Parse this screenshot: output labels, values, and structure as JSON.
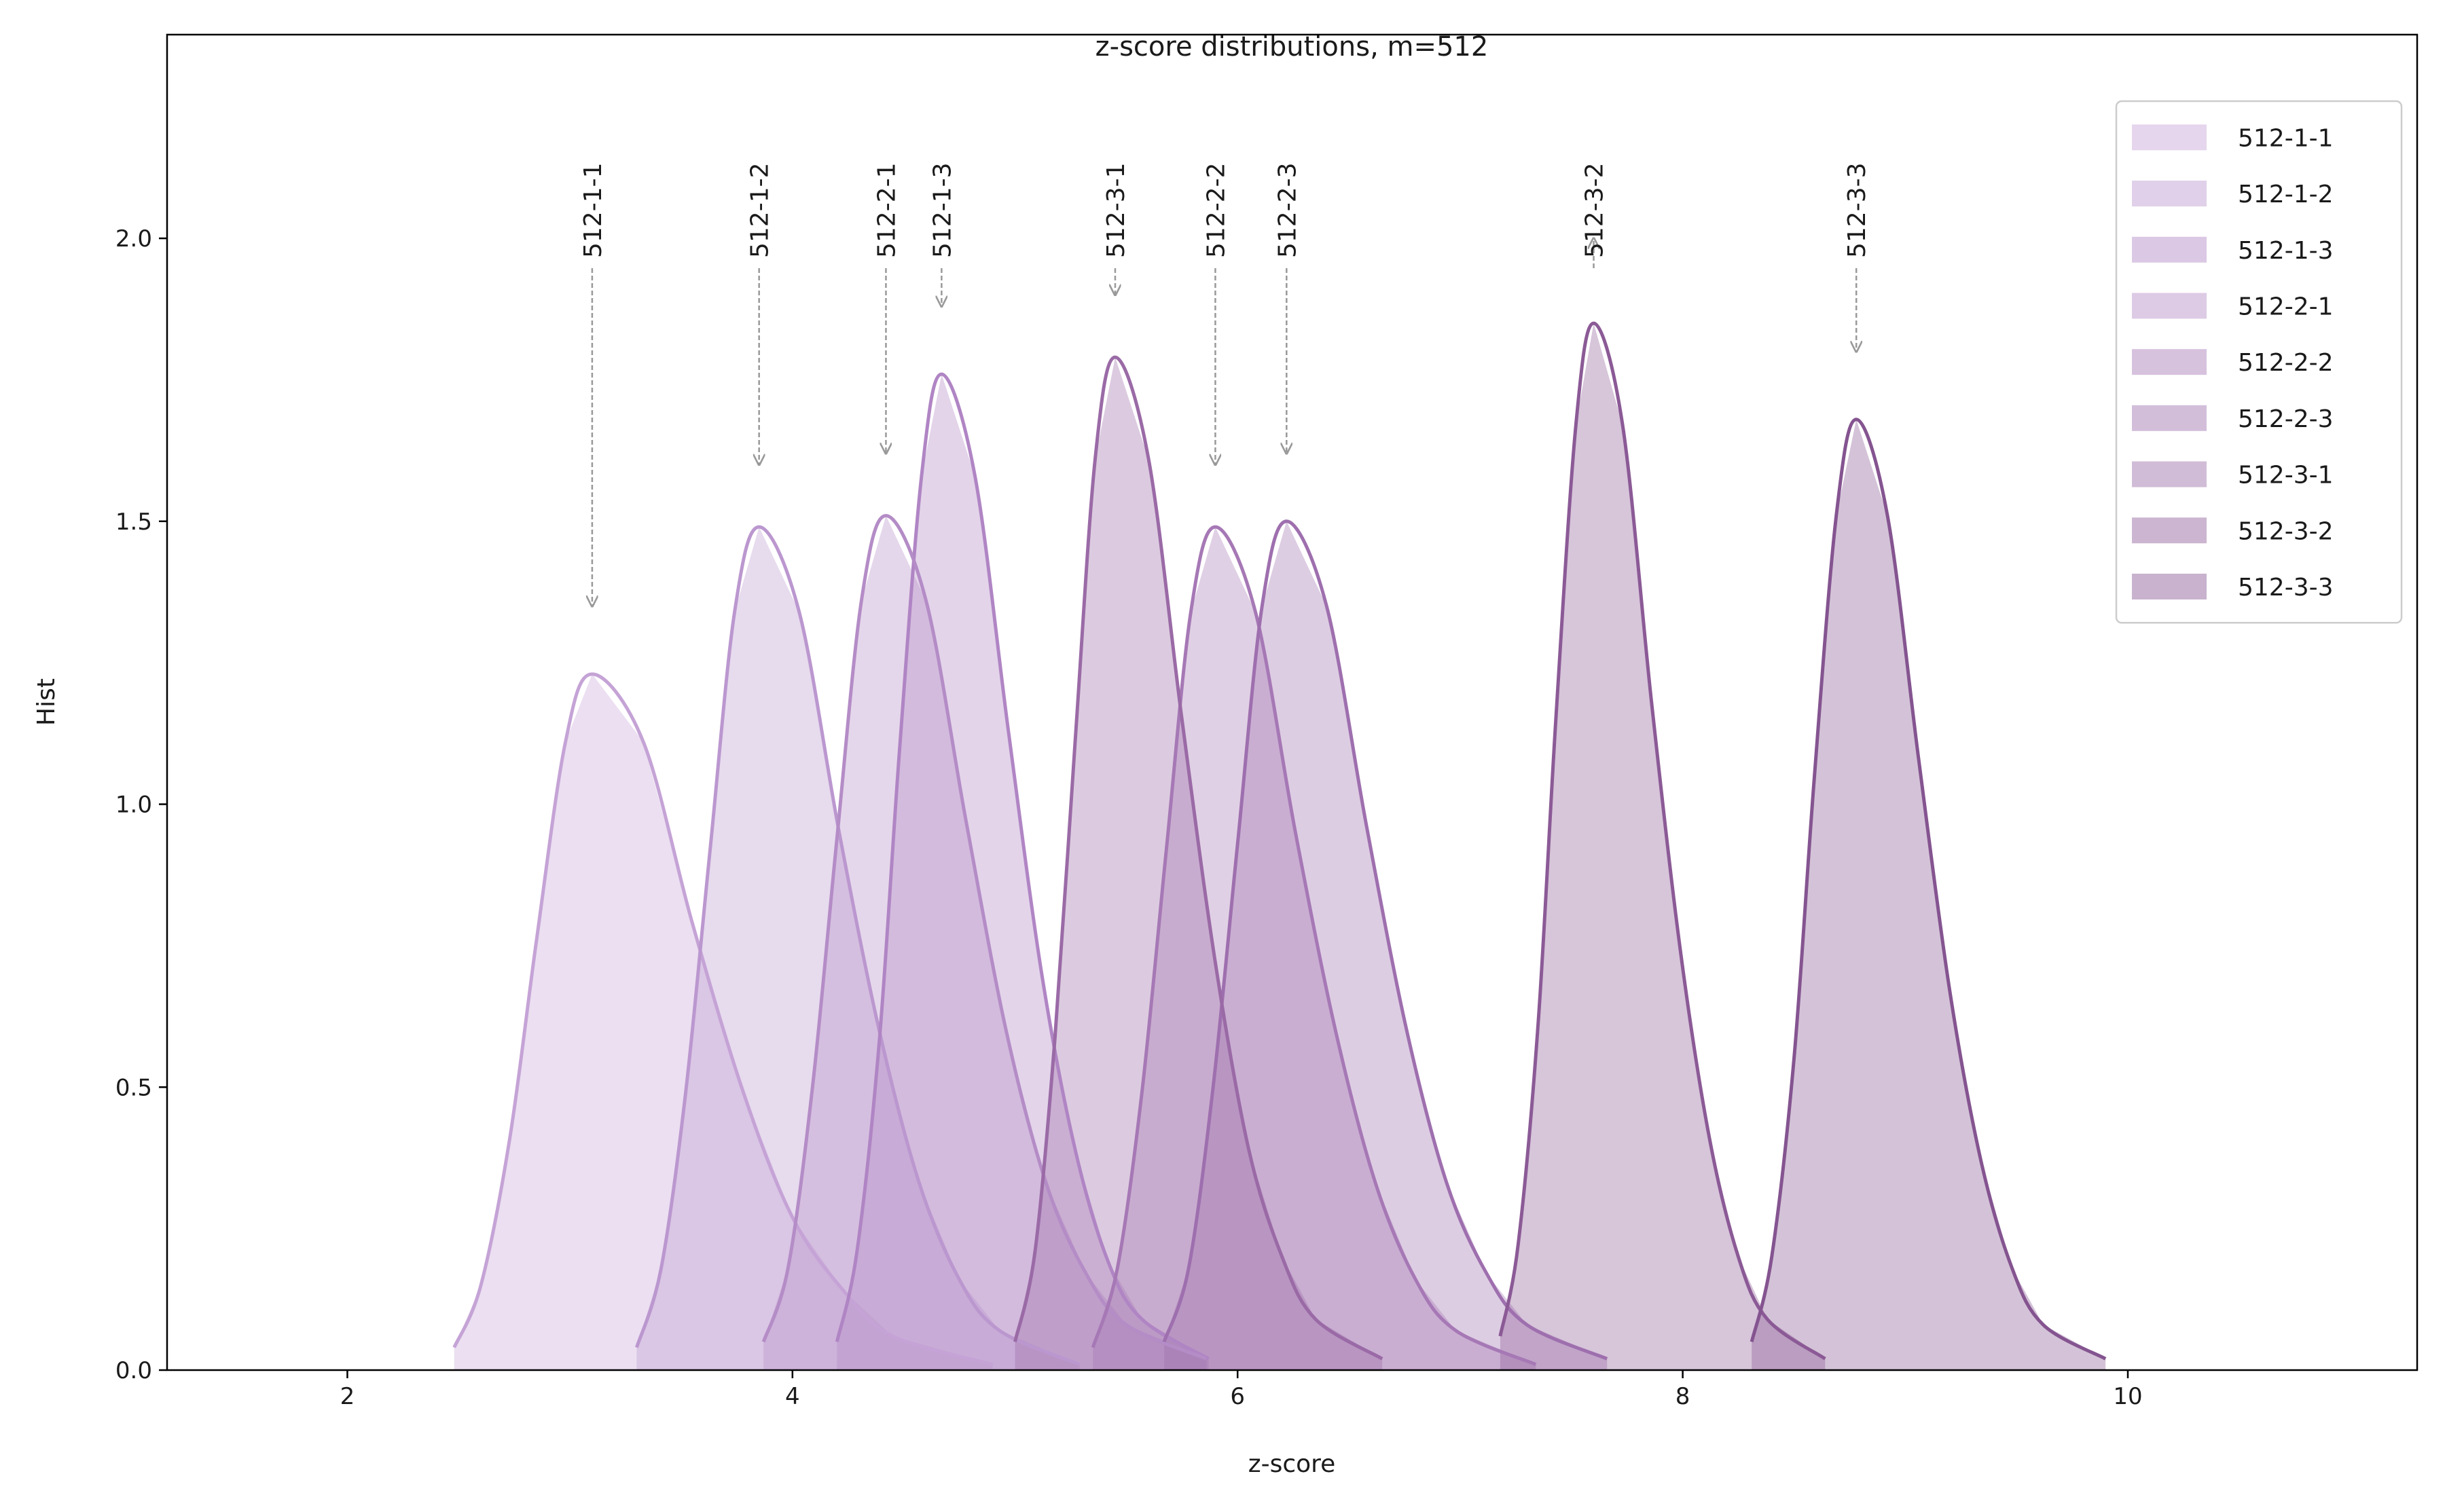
{
  "chart_data": {
    "type": "kde",
    "title": "z-score distributions, m=512",
    "x_label": "z-score",
    "y_label": "Hist",
    "xlim": [
      1.19,
      11.3
    ],
    "ylim": [
      0,
      2.36
    ],
    "xticks": [
      2,
      4,
      6,
      8,
      10
    ],
    "yticks": [
      {
        "value": 0,
        "label": "0.0"
      },
      {
        "value": 0.5,
        "label": "0.5"
      },
      {
        "value": 1,
        "label": "1.0"
      },
      {
        "value": 1.5,
        "label": "1.5"
      },
      {
        "value": 2,
        "label": "2.0"
      }
    ],
    "grid": false,
    "legend": "upper right",
    "series": [
      {
        "name": "512-1-1",
        "color": "#c5a3d6",
        "x": [
          2.48,
          2.6,
          2.73,
          2.85,
          2.98,
          3.1,
          3.33,
          3.55,
          3.78,
          4.0,
          4.23,
          4.45,
          4.9
        ],
        "values": [
          0.04,
          0.15,
          0.41,
          0.76,
          1.11,
          1.23,
          1.11,
          0.79,
          0.49,
          0.27,
          0.14,
          0.06,
          0.01
        ]
      },
      {
        "name": "512-1-2",
        "color": "#bb97cf",
        "x": [
          3.3,
          3.41,
          3.52,
          3.63,
          3.74,
          3.85,
          4.03,
          4.21,
          4.39,
          4.57,
          4.75,
          4.93,
          5.29
        ],
        "values": [
          0.04,
          0.18,
          0.49,
          0.92,
          1.34,
          1.49,
          1.34,
          0.95,
          0.6,
          0.33,
          0.16,
          0.07,
          0.01
        ]
      },
      {
        "name": "512-1-3",
        "color": "#b085c4",
        "x": [
          4.2,
          4.29,
          4.39,
          4.48,
          4.58,
          4.67,
          4.82,
          4.97,
          5.12,
          5.27,
          5.42,
          5.57,
          5.87
        ],
        "values": [
          0.05,
          0.21,
          0.58,
          1.09,
          1.58,
          1.76,
          1.58,
          1.13,
          0.7,
          0.39,
          0.19,
          0.09,
          0.02
        ]
      },
      {
        "name": "512-2-1",
        "color": "#b48cc6",
        "x": [
          3.87,
          3.98,
          4.09,
          4.2,
          4.31,
          4.42,
          4.6,
          4.78,
          4.96,
          5.14,
          5.32,
          5.5,
          5.86
        ],
        "values": [
          0.05,
          0.18,
          0.5,
          0.94,
          1.36,
          1.51,
          1.36,
          0.97,
          0.6,
          0.33,
          0.17,
          0.08,
          0.02
        ]
      },
      {
        "name": "512-2-2",
        "color": "#a678b5",
        "x": [
          5.35,
          5.46,
          5.57,
          5.68,
          5.79,
          5.9,
          6.08,
          6.26,
          6.44,
          6.62,
          6.8,
          6.98,
          7.34
        ],
        "values": [
          0.04,
          0.18,
          0.49,
          0.92,
          1.34,
          1.49,
          1.34,
          0.95,
          0.6,
          0.33,
          0.16,
          0.07,
          0.01
        ]
      },
      {
        "name": "512-2-3",
        "color": "#9e6fae",
        "x": [
          5.67,
          5.78,
          5.89,
          6.0,
          6.11,
          6.22,
          6.4,
          6.58,
          6.76,
          6.94,
          7.12,
          7.3,
          7.66
        ],
        "values": [
          0.05,
          0.18,
          0.5,
          0.93,
          1.35,
          1.5,
          1.35,
          0.96,
          0.6,
          0.33,
          0.17,
          0.08,
          0.02
        ]
      },
      {
        "name": "512-3-1",
        "color": "#9a6aa6",
        "x": [
          5.0,
          5.09,
          5.18,
          5.27,
          5.36,
          5.45,
          5.6,
          5.75,
          5.9,
          6.05,
          6.2,
          6.35,
          6.65
        ],
        "values": [
          0.05,
          0.21,
          0.59,
          1.11,
          1.61,
          1.79,
          1.61,
          1.15,
          0.72,
          0.39,
          0.2,
          0.09,
          0.02
        ]
      },
      {
        "name": "512-3-2",
        "color": "#8b5a96",
        "x": [
          7.18,
          7.26,
          7.35,
          7.43,
          7.52,
          7.6,
          7.73,
          7.86,
          7.99,
          8.12,
          8.25,
          8.38,
          8.64
        ],
        "values": [
          0.06,
          0.22,
          0.61,
          1.15,
          1.67,
          1.85,
          1.67,
          1.18,
          0.74,
          0.41,
          0.2,
          0.09,
          0.02
        ]
      },
      {
        "name": "512-3-3",
        "color": "#845490",
        "x": [
          8.31,
          8.4,
          8.5,
          8.59,
          8.69,
          8.78,
          8.92,
          9.06,
          9.2,
          9.34,
          9.48,
          9.62,
          9.9
        ],
        "values": [
          0.05,
          0.2,
          0.55,
          1.04,
          1.51,
          1.68,
          1.51,
          1.08,
          0.67,
          0.37,
          0.18,
          0.08,
          0.02
        ]
      }
    ],
    "annotations": [
      {
        "text": "512-1-1",
        "x": 3.1,
        "y": 1.35
      },
      {
        "text": "512-1-2",
        "x": 3.85,
        "y": 1.6
      },
      {
        "text": "512-2-1",
        "x": 4.42,
        "y": 1.62
      },
      {
        "text": "512-1-3",
        "x": 4.67,
        "y": 1.88
      },
      {
        "text": "512-3-1",
        "x": 5.45,
        "y": 1.9
      },
      {
        "text": "512-2-2",
        "x": 5.9,
        "y": 1.6
      },
      {
        "text": "512-2-3",
        "x": 6.22,
        "y": 1.62
      },
      {
        "text": "512-3-2",
        "x": 7.6,
        "y": 2.0
      },
      {
        "text": "512-3-3",
        "x": 8.78,
        "y": 1.8
      }
    ]
  }
}
